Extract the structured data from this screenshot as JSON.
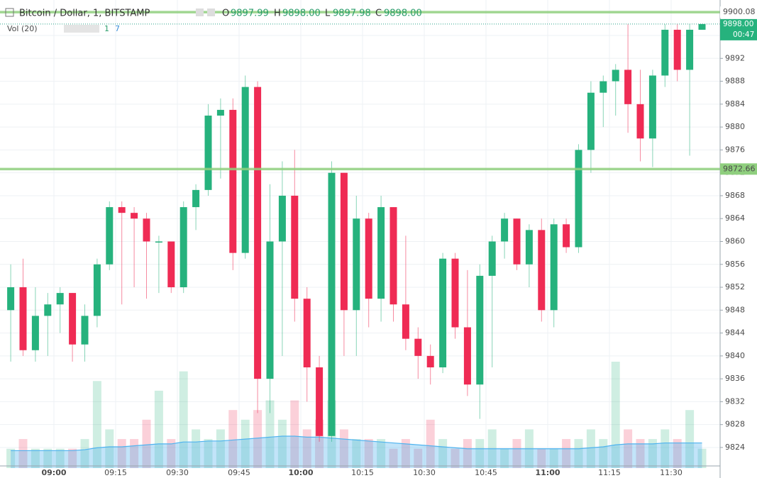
{
  "chart_data": {
    "type": "candlestick",
    "title": "Bitcoin / Dollar, 1, BITSTAMP",
    "legend": {
      "o_label": "O",
      "o": "9897.99",
      "h_label": "H",
      "h": "9898.00",
      "l_label": "L",
      "l": "9897.98",
      "c_label": "C",
      "c": "9898.00"
    },
    "volume_legend": {
      "label": "Vol (20)",
      "v1": "1",
      "v2": "7"
    },
    "up_color": "#26b27d",
    "down_color": "#ef2b54",
    "categories": [
      "08:48",
      "08:51",
      "08:54",
      "08:57",
      "09:00",
      "09:03",
      "09:06",
      "09:09",
      "09:12",
      "09:15",
      "09:18",
      "09:21",
      "09:24",
      "09:27",
      "09:30",
      "09:33",
      "09:36",
      "09:39",
      "09:42",
      "09:45",
      "09:48",
      "09:51",
      "09:54",
      "09:57",
      "10:00",
      "10:03",
      "10:06",
      "10:09",
      "10:12",
      "10:15",
      "10:18",
      "10:21",
      "10:24",
      "10:27",
      "10:30",
      "10:33",
      "10:36",
      "10:39",
      "10:42",
      "10:45",
      "10:48",
      "10:51",
      "10:54",
      "10:57",
      "11:00",
      "11:03",
      "11:06",
      "11:09",
      "11:12",
      "11:15",
      "11:18",
      "11:21",
      "11:24",
      "11:27",
      "11:30",
      "11:33",
      "11:36"
    ],
    "open": [
      9848,
      9852,
      9841,
      9847,
      9849,
      9851,
      9842,
      9847,
      9856,
      9866,
      9865,
      9864,
      9860,
      9860,
      9852,
      9866,
      9869,
      9882,
      9883,
      9858,
      9887,
      9836,
      9860,
      9868,
      9850,
      9838,
      9826,
      9872,
      9848,
      9864,
      9850,
      9866,
      9849,
      9843,
      9840,
      9838,
      9857,
      9845,
      9835,
      9854,
      9860,
      9864,
      9856,
      9862,
      9848,
      9863,
      9859,
      9876,
      9886,
      9888,
      9890,
      9884,
      9878,
      9889,
      9897,
      9890,
      9897
    ],
    "high": [
      9856,
      9857,
      9852,
      9851,
      9852,
      9851,
      9849,
      9857,
      9867,
      9867,
      9866,
      9865,
      9861,
      9860,
      9867,
      9870,
      9884,
      9885,
      9885,
      9889,
      9888,
      9870,
      9874,
      9876,
      9852,
      9840,
      9874,
      9872,
      9868,
      9865,
      9868,
      9866,
      9861,
      9845,
      9842,
      9858,
      9858,
      9855,
      9856,
      9861,
      9865,
      9864,
      9863,
      9864,
      9864,
      9864,
      9877,
      9888,
      9889,
      9891,
      9898,
      9890,
      9890,
      9898,
      9898,
      9898,
      9898
    ],
    "low": [
      9839,
      9840,
      9839,
      9840,
      9844,
      9839,
      9839,
      9845,
      9855,
      9849,
      9852,
      9850,
      9851,
      9851,
      9851,
      9862,
      9868,
      9871,
      9855,
      9857,
      9830,
      9830,
      9840,
      9846,
      9832,
      9825,
      9825,
      9840,
      9840,
      9845,
      9846,
      9846,
      9841,
      9836,
      9835,
      9837,
      9843,
      9833,
      9829,
      9838,
      9857,
      9855,
      9852,
      9846,
      9845,
      9858,
      9858,
      9872,
      9880,
      9882,
      9879,
      9874,
      9873,
      9887,
      9888,
      9875,
      9897
    ],
    "close": [
      9852,
      9841,
      9847,
      9849,
      9851,
      9842,
      9847,
      9856,
      9866,
      9865,
      9864,
      9860,
      9860,
      9852,
      9866,
      9869,
      9882,
      9883,
      9858,
      9887,
      9836,
      9860,
      9868,
      9850,
      9838,
      9826,
      9872,
      9848,
      9864,
      9850,
      9866,
      9849,
      9843,
      9840,
      9838,
      9857,
      9845,
      9835,
      9854,
      9860,
      9864,
      9856,
      9862,
      9848,
      9863,
      9859,
      9876,
      9886,
      9888,
      9890,
      9884,
      9878,
      9889,
      9897,
      9890,
      9897,
      9898
    ],
    "volume": [
      2,
      3,
      2,
      2,
      2,
      2,
      3,
      9,
      4,
      3,
      3,
      5,
      8,
      3,
      10,
      4,
      3,
      4,
      6,
      5,
      6,
      7,
      5,
      7,
      4,
      5,
      7,
      4,
      3,
      3,
      3,
      2,
      3,
      2,
      5,
      3,
      2,
      3,
      3,
      4,
      2,
      3,
      4,
      2,
      2,
      3,
      3,
      4,
      3,
      11,
      4,
      3,
      3,
      4,
      3,
      6,
      2
    ],
    "volume_ma": [
      1.8,
      1.8,
      1.8,
      1.8,
      1.8,
      1.8,
      1.9,
      2.1,
      2.2,
      2.2,
      2.3,
      2.4,
      2.5,
      2.5,
      2.7,
      2.7,
      2.8,
      2.8,
      2.9,
      3,
      3.1,
      3.2,
      3.3,
      3.3,
      3.2,
      3.2,
      3.1,
      3,
      2.9,
      2.8,
      2.7,
      2.6,
      2.5,
      2.4,
      2.3,
      2.2,
      2.1,
      2,
      2,
      2,
      2,
      2,
      2,
      2,
      2,
      2,
      2,
      2.1,
      2.2,
      2.4,
      2.5,
      2.5,
      2.5,
      2.6,
      2.6,
      2.6,
      2.6
    ],
    "ylim": [
      9820.4,
      9902.2
    ],
    "yticks": [
      9824,
      9828,
      9832,
      9836,
      9840,
      9844,
      9848,
      9852,
      9856,
      9860,
      9864,
      9868,
      9872,
      9876,
      9880,
      9884,
      9888,
      9892,
      9896
    ],
    "xticks": [
      "09:00",
      "09:15",
      "09:30",
      "09:45",
      "10:00",
      "10:15",
      "10:30",
      "10:45",
      "11:00",
      "11:15",
      "11:30"
    ],
    "levels": [
      {
        "value": 9900.08,
        "label": "9900.08"
      },
      {
        "value": 9872.66,
        "label": "9872.66"
      }
    ],
    "level_color": "#8fcf7e",
    "last_price": {
      "value": 9898,
      "label": "9898.00"
    },
    "countdown": "00:47",
    "grid": true
  }
}
